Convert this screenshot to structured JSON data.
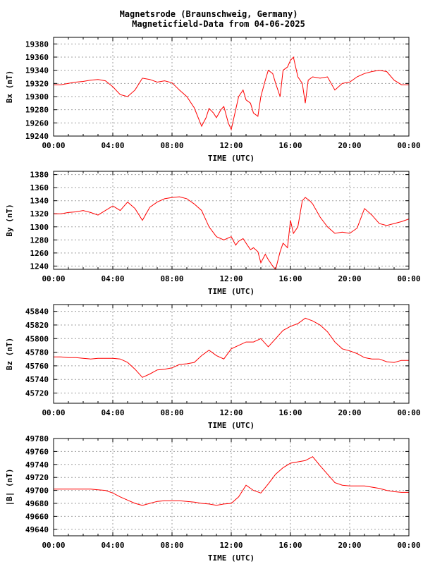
{
  "title_line1": "Magnetsrode (Braunschweig, Germany)",
  "title_line2": "Magneticfield-Data from 04-06-2025",
  "colors": {
    "series": "#ff0000",
    "grid": "#a0a0a0",
    "frame": "#000000"
  },
  "chart_data": [
    {
      "type": "line",
      "ylabel": "Bx (nT)",
      "xlabel": "TIME (UTC)",
      "ylim": [
        19240,
        19390
      ],
      "yticks": [
        19240,
        19260,
        19280,
        19300,
        19320,
        19340,
        19360,
        19380
      ],
      "xlim": [
        0,
        24
      ],
      "xticks": [
        "00:00",
        "04:00",
        "08:00",
        "12:00",
        "16:00",
        "20:00",
        "00:00"
      ],
      "grid": true,
      "series": [
        {
          "x": [
            0,
            0.5,
            1,
            1.5,
            2,
            2.5,
            3,
            3.5,
            4,
            4.5,
            5,
            5.5,
            6,
            6.5,
            7,
            7.5,
            8,
            8.5,
            9,
            9.5,
            10,
            10.3,
            10.5,
            10.8,
            11,
            11.3,
            11.5,
            11.8,
            12,
            12.2,
            12.5,
            12.8,
            13,
            13.3,
            13.5,
            13.8,
            14,
            14.3,
            14.5,
            14.8,
            15,
            15.3,
            15.5,
            15.8,
            16,
            16.2,
            16.5,
            16.8,
            17,
            17.2,
            17.5,
            18,
            18.5,
            19,
            19.5,
            20,
            20.5,
            21,
            21.5,
            22,
            22.5,
            23,
            23.5,
            24
          ],
          "y": [
            19318,
            19318,
            19320,
            19322,
            19323,
            19325,
            19326,
            19324,
            19315,
            19303,
            19300,
            19310,
            19328,
            19326,
            19322,
            19324,
            19321,
            19310,
            19300,
            19283,
            19255,
            19268,
            19282,
            19275,
            19268,
            19280,
            19285,
            19260,
            19250,
            19270,
            19300,
            19310,
            19295,
            19290,
            19275,
            19270,
            19300,
            19325,
            19340,
            19335,
            19320,
            19300,
            19340,
            19345,
            19355,
            19360,
            19330,
            19320,
            19290,
            19325,
            19330,
            19328,
            19330,
            19310,
            19320,
            19322,
            19330,
            19335,
            19338,
            19340,
            19338,
            19325,
            19318,
            19318
          ]
        }
      ]
    },
    {
      "type": "line",
      "ylabel": "By (nT)",
      "xlabel": "TIME (UTC)",
      "ylim": [
        1235,
        1385
      ],
      "yticks": [
        1240,
        1260,
        1280,
        1300,
        1320,
        1340,
        1360,
        1380
      ],
      "xlim": [
        0,
        24
      ],
      "xticks": [
        "00:00",
        "04:00",
        "08:00",
        "12:00",
        "16:00",
        "20:00",
        "00:00"
      ],
      "grid": true,
      "series": [
        {
          "x": [
            0,
            0.5,
            1,
            1.5,
            2,
            2.5,
            3,
            3.5,
            4,
            4.5,
            5,
            5.5,
            6,
            6.5,
            7,
            7.5,
            8,
            8.5,
            9,
            9.5,
            10,
            10.5,
            11,
            11.5,
            12,
            12.3,
            12.5,
            12.8,
            13,
            13.3,
            13.5,
            13.8,
            14,
            14.3,
            14.5,
            14.8,
            15,
            15.3,
            15.5,
            15.8,
            16,
            16.2,
            16.5,
            16.8,
            17,
            17.3,
            17.5,
            18,
            18.5,
            19,
            19.5,
            20,
            20.5,
            21,
            21.5,
            22,
            22.5,
            23,
            23.5,
            24
          ],
          "y": [
            1320,
            1320,
            1322,
            1323,
            1325,
            1322,
            1318,
            1325,
            1332,
            1325,
            1338,
            1328,
            1310,
            1330,
            1338,
            1343,
            1345,
            1346,
            1343,
            1335,
            1325,
            1300,
            1285,
            1280,
            1285,
            1272,
            1278,
            1282,
            1275,
            1265,
            1268,
            1262,
            1245,
            1258,
            1250,
            1240,
            1235,
            1262,
            1275,
            1268,
            1310,
            1290,
            1300,
            1340,
            1345,
            1340,
            1335,
            1315,
            1300,
            1290,
            1292,
            1290,
            1298,
            1328,
            1318,
            1305,
            1302,
            1305,
            1308,
            1312
          ]
        }
      ]
    },
    {
      "type": "line",
      "ylabel": "Bz (nT)",
      "xlabel": "TIME (UTC)",
      "ylim": [
        45705,
        45850
      ],
      "yticks": [
        45720,
        45740,
        45760,
        45780,
        45800,
        45820,
        45840
      ],
      "xlim": [
        0,
        24
      ],
      "xticks": [
        "00:00",
        "04:00",
        "08:00",
        "12:00",
        "16:00",
        "20:00",
        "00:00"
      ],
      "grid": true,
      "series": [
        {
          "x": [
            0,
            0.5,
            1,
            1.5,
            2,
            2.5,
            3,
            3.5,
            4,
            4.5,
            5,
            5.5,
            6,
            6.5,
            7,
            7.5,
            8,
            8.5,
            9,
            9.5,
            10,
            10.5,
            11,
            11.5,
            12,
            12.5,
            13,
            13.5,
            14,
            14.5,
            15,
            15.5,
            16,
            16.5,
            17,
            17.5,
            18,
            18.5,
            19,
            19.5,
            20,
            20.5,
            21,
            21.5,
            22,
            22.5,
            23,
            23.5,
            24
          ],
          "y": [
            45773,
            45773,
            45772,
            45772,
            45771,
            45770,
            45771,
            45771,
            45771,
            45770,
            45765,
            45755,
            45743,
            45748,
            45754,
            45755,
            45757,
            45762,
            45763,
            45765,
            45775,
            45783,
            45775,
            45770,
            45785,
            45790,
            45795,
            45795,
            45800,
            45788,
            45800,
            45812,
            45818,
            45822,
            45830,
            45826,
            45820,
            45810,
            45795,
            45785,
            45782,
            45778,
            45772,
            45770,
            45770,
            45766,
            45765,
            45768,
            45768
          ]
        }
      ]
    },
    {
      "type": "line",
      "ylabel": "|B| (nT)",
      "xlabel": "TIME (UTC)",
      "ylim": [
        49630,
        49780
      ],
      "yticks": [
        49640,
        49660,
        49680,
        49700,
        49720,
        49740,
        49760,
        49780
      ],
      "xlim": [
        0,
        24
      ],
      "xticks": [
        "00:00",
        "04:00",
        "08:00",
        "12:00",
        "16:00",
        "20:00",
        "00:00"
      ],
      "grid": true,
      "series": [
        {
          "x": [
            0,
            0.5,
            1,
            1.5,
            2,
            2.5,
            3,
            3.5,
            4,
            4.5,
            5,
            5.5,
            6,
            6.5,
            7,
            7.5,
            8,
            8.5,
            9,
            9.5,
            10,
            10.5,
            11,
            11.5,
            12,
            12.5,
            13,
            13.5,
            14,
            14.5,
            15,
            15.5,
            16,
            16.5,
            17,
            17.5,
            18,
            18.5,
            19,
            19.5,
            20,
            20.5,
            21,
            21.5,
            22,
            22.5,
            23,
            23.5,
            24
          ],
          "y": [
            49702,
            49702,
            49702,
            49702,
            49702,
            49702,
            49701,
            49700,
            49696,
            49690,
            49685,
            49680,
            49677,
            49680,
            49683,
            49684,
            49684,
            49684,
            49683,
            49682,
            49680,
            49679,
            49677,
            49679,
            49680,
            49690,
            49708,
            49700,
            49696,
            49710,
            49725,
            49735,
            49742,
            49744,
            49746,
            49752,
            49738,
            49725,
            49712,
            49708,
            49707,
            49707,
            49707,
            49705,
            49703,
            49700,
            49698,
            49697,
            49697
          ]
        }
      ]
    }
  ]
}
